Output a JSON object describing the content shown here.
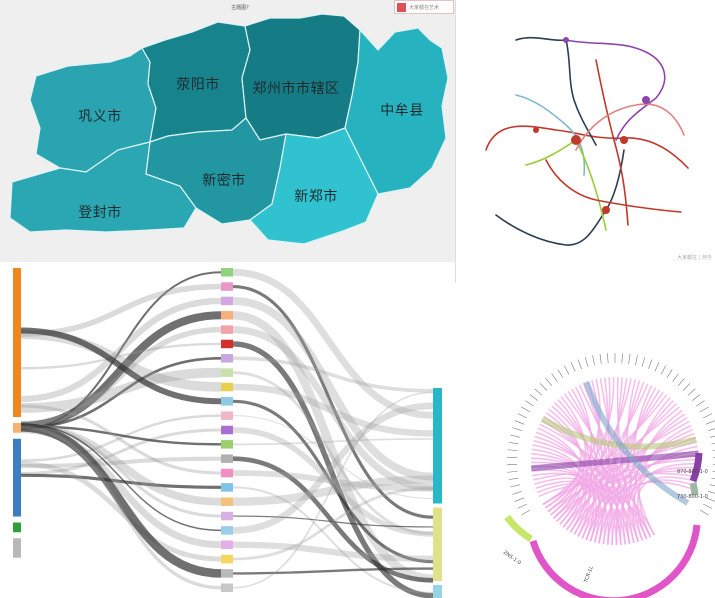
{
  "map": {
    "title": "主题图?",
    "badge_text": "大家都在艺术",
    "regions": [
      {
        "key": "gongyi",
        "name": "巩义市",
        "color": "#2aa4b0"
      },
      {
        "key": "xingyang",
        "name": "荥阳市",
        "color": "#17838d"
      },
      {
        "key": "zhengzhou",
        "name": "郑州市市辖区",
        "color": "#157c86"
      },
      {
        "key": "zhongmou",
        "name": "中牟县",
        "color": "#27b2bf"
      },
      {
        "key": "dengfeng",
        "name": "登封市",
        "color": "#2aa7b3"
      },
      {
        "key": "xinmi",
        "name": "新密市",
        "color": "#2297a2"
      },
      {
        "key": "xinzheng",
        "name": "新郑市",
        "color": "#30c2cf"
      }
    ]
  },
  "transit": {
    "watermark": "大家都在 | 何今",
    "line_colors": [
      "#c0392b",
      "#8e44ad",
      "#2c3e50",
      "#7fb8c9",
      "#9acd32",
      "#e08080"
    ]
  },
  "sankey": {
    "sources": [
      {
        "key": "s1",
        "color": "#f0861d",
        "share": 0.46
      },
      {
        "key": "s2",
        "color": "#f6b26b",
        "share": 0.03
      },
      {
        "key": "s3",
        "color": "#3d7ec2",
        "share": 0.24
      },
      {
        "key": "s4",
        "color": "#2d9f3c",
        "share": 0.03
      },
      {
        "key": "s5",
        "color": "#b8b8b8",
        "share": 0.06
      }
    ],
    "middle_colors": [
      "#8fd37c",
      "#e897c8",
      "#d4a7e3",
      "#f6b07d",
      "#f2a3a8",
      "#d62e2e",
      "#c6a8e0",
      "#c9e0a8",
      "#e8d04d",
      "#8ec9e6",
      "#f2b6c8",
      "#a96fd1",
      "#9ad06c",
      "#b0b0b0",
      "#f28ec2",
      "#7ec4e8",
      "#f4c27a",
      "#d7b0e4",
      "#9bcce8",
      "#e6aee8",
      "#f5d55a",
      "#b9b9b9",
      "#c7c7c7"
    ],
    "targets": [
      {
        "key": "t1",
        "color": "#27b7c6",
        "share": 0.55
      },
      {
        "key": "t2",
        "color": "#dfe28b",
        "share": 0.35
      },
      {
        "key": "t3",
        "color": "#96d6e4",
        "share": 0.08
      }
    ]
  },
  "chord": {
    "big_arc_color": "#e055c7",
    "chord_color": "#f2a9e6",
    "label_bottom": "TCR-1L",
    "label_right_top": "870-800-1-0",
    "label_right_mid": "730-800-1-0",
    "label_left": "ZNS-1-0"
  }
}
